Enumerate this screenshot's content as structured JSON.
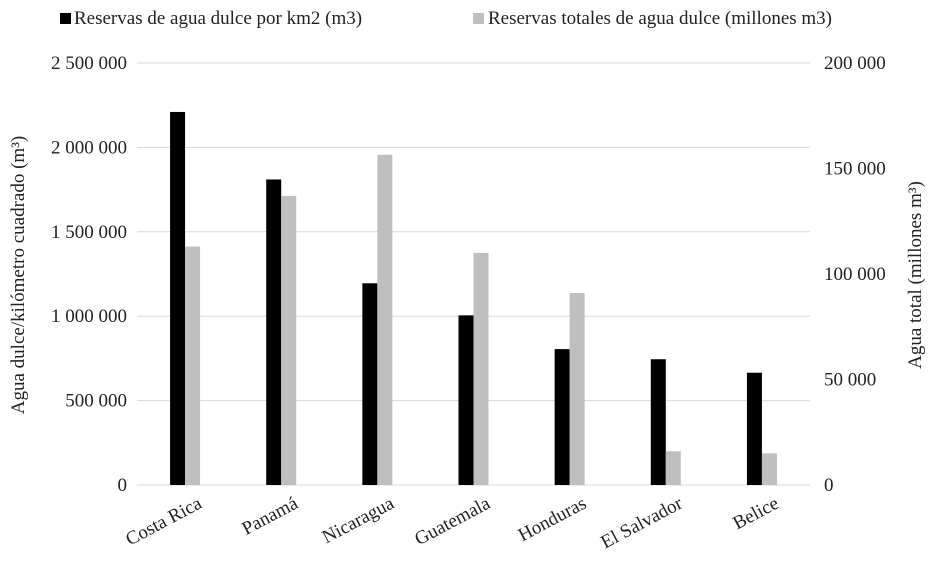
{
  "chart_data": {
    "type": "bar",
    "categories": [
      "Costa Rica",
      "Panamá",
      "Nicaragua",
      "Guatemala",
      "Honduras",
      "El Salvador",
      "Belice"
    ],
    "series": [
      {
        "name": "Reservas de agua dulce por km2 (m3)",
        "color": "#000000",
        "axis": "left",
        "values": [
          2210000,
          1810000,
          1195000,
          1005000,
          805000,
          745000,
          665000
        ]
      },
      {
        "name": "Reservas totales de agua dulce (millones m3)",
        "color": "#bfbfbf",
        "axis": "right",
        "values": [
          113000,
          137000,
          156500,
          110000,
          91000,
          16000,
          15000
        ]
      }
    ],
    "ylabel_left": "Agua dulce/kilómetro cuadrado (m³)",
    "ylabel_right": "Agua total (millones m³)",
    "ylim_left": [
      0,
      2500000
    ],
    "ylim_right": [
      0,
      200000
    ],
    "yticks_left": [
      "0",
      "500 000",
      "1 000 000",
      "1 500 000",
      "2 000 000",
      "2 500 000"
    ],
    "yticks_right": [
      "0",
      "50 000",
      "100 000",
      "150 000",
      "200 000"
    ],
    "legend_position": "top",
    "grid": true
  }
}
